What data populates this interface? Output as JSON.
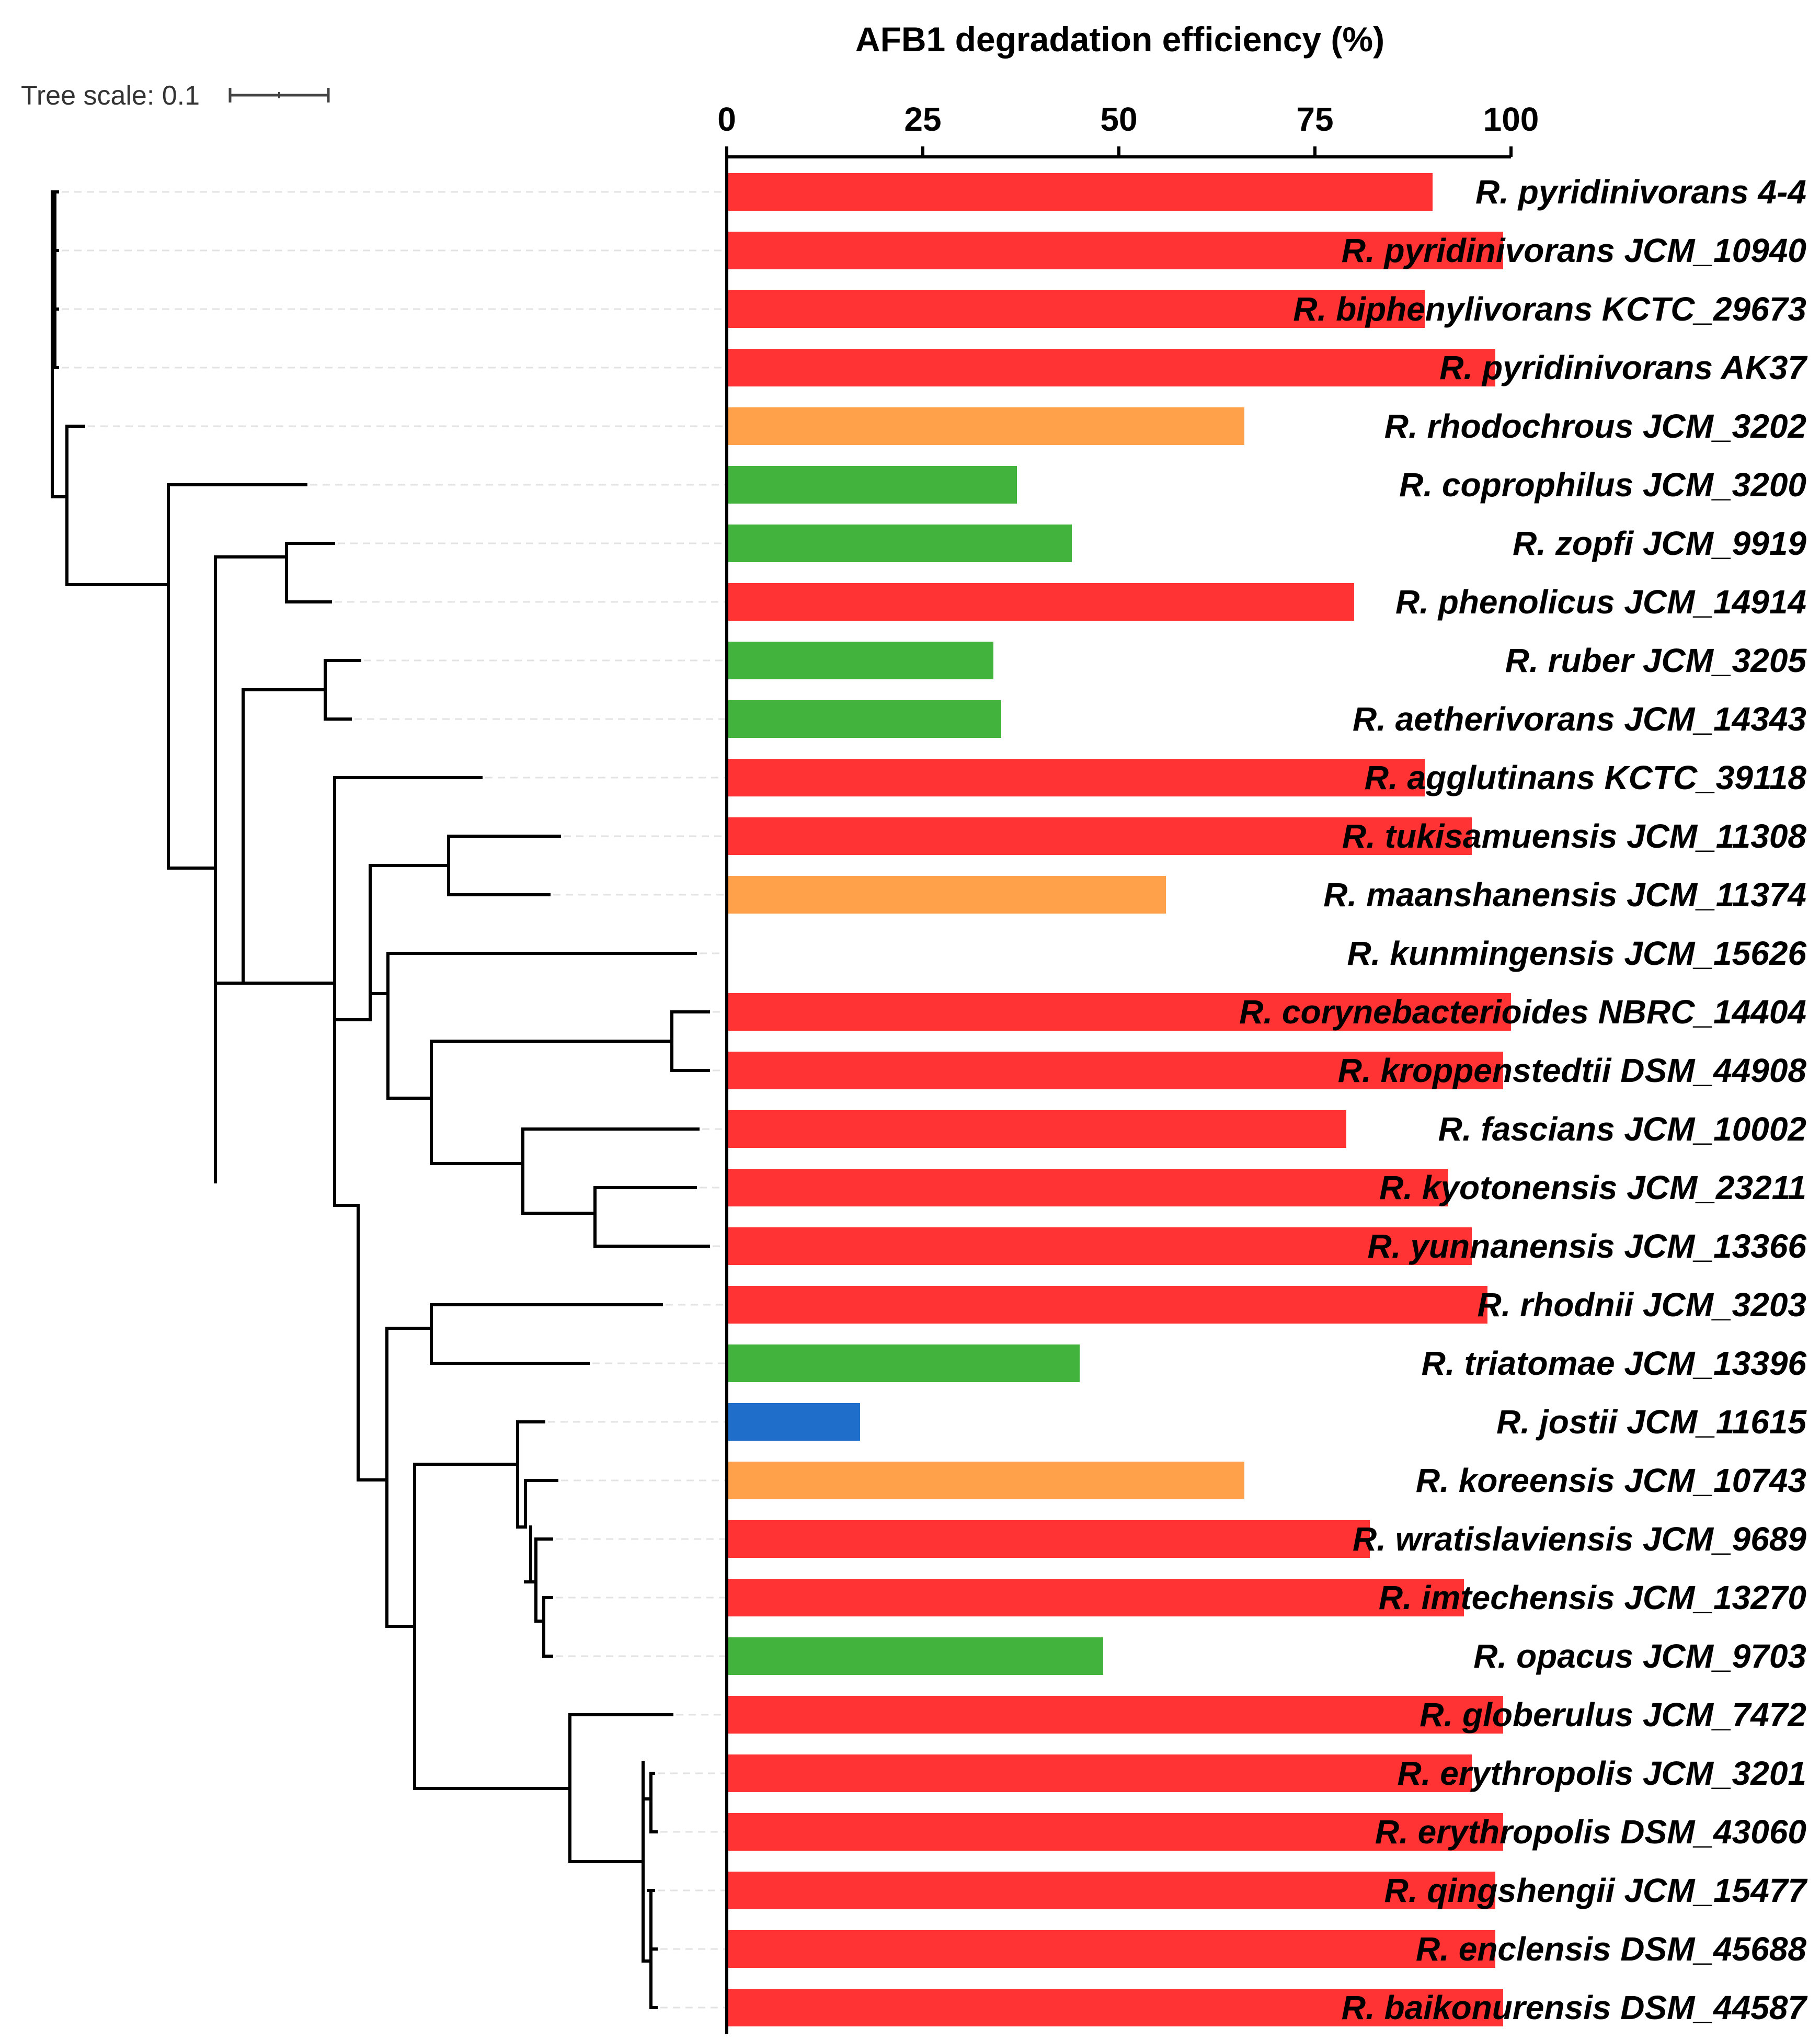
{
  "tree_scale": {
    "label": "Tree scale: 0.1"
  },
  "chart_data": {
    "type": "bar",
    "orientation": "horizontal",
    "title": "AFB1 degradation efficiency (%)",
    "xlim": [
      0,
      100
    ],
    "ticks": [
      0,
      25,
      50,
      75,
      100
    ],
    "tick_labels": [
      "0",
      "25",
      "50",
      "75",
      "100"
    ],
    "color_key": {
      "red": "#ff3333",
      "orange": "#ffa04a",
      "green": "#42b33d",
      "blue": "#1f6fca"
    },
    "categories": [
      "R. pyridinivorans 4-4",
      "R. pyridinivorans JCM_10940",
      "R. biphenylivorans KCTC_29673",
      "R. pyridinivorans AK37",
      "R. rhodochrous JCM_3202",
      "R. coprophilus JCM_3200",
      "R. zopfi JCM_9919",
      "R. phenolicus JCM_14914",
      "R. ruber JCM_3205",
      "R. aetherivorans JCM_14343",
      "R. agglutinans KCTC_39118",
      "R. tukisamuensis JCM_11308",
      "R. maanshanensis JCM_11374",
      "R. kunmingensis JCM_15626",
      "R. corynebacterioides NBRC_14404",
      "R. kroppenstedtii DSM_44908",
      "R. fascians JCM_10002",
      "R. kyotonensis JCM_23211",
      "R. yunnanensis JCM_13366",
      "R. rhodnii JCM_3203",
      "R. triatomae JCM_13396",
      "R. jostii JCM_11615",
      "R. koreensis JCM_10743",
      "R. wratislaviensis JCM_9689",
      "R. imtechensis JCM_13270",
      "R. opacus JCM_9703",
      "R. globerulus JCM_7472",
      "R. erythropolis JCM_3201",
      "R. erythropolis DSM_43060",
      "R. qingshengii JCM_15477",
      "R. enclensis DSM_45688",
      "R. baikonurensis DSM_44587"
    ],
    "values": [
      90,
      99,
      89,
      98,
      66,
      37,
      44,
      80,
      34,
      35,
      89,
      95,
      56,
      0,
      100,
      99,
      79,
      92,
      95,
      97,
      45,
      17,
      66,
      82,
      94,
      48,
      99,
      95,
      99,
      98,
      98,
      99
    ],
    "colors": [
      "red",
      "red",
      "red",
      "red",
      "orange",
      "green",
      "green",
      "red",
      "green",
      "green",
      "red",
      "red",
      "orange",
      "none",
      "red",
      "red",
      "red",
      "red",
      "red",
      "red",
      "green",
      "blue",
      "orange",
      "red",
      "red",
      "green",
      "red",
      "red",
      "red",
      "red",
      "red",
      "red"
    ]
  }
}
